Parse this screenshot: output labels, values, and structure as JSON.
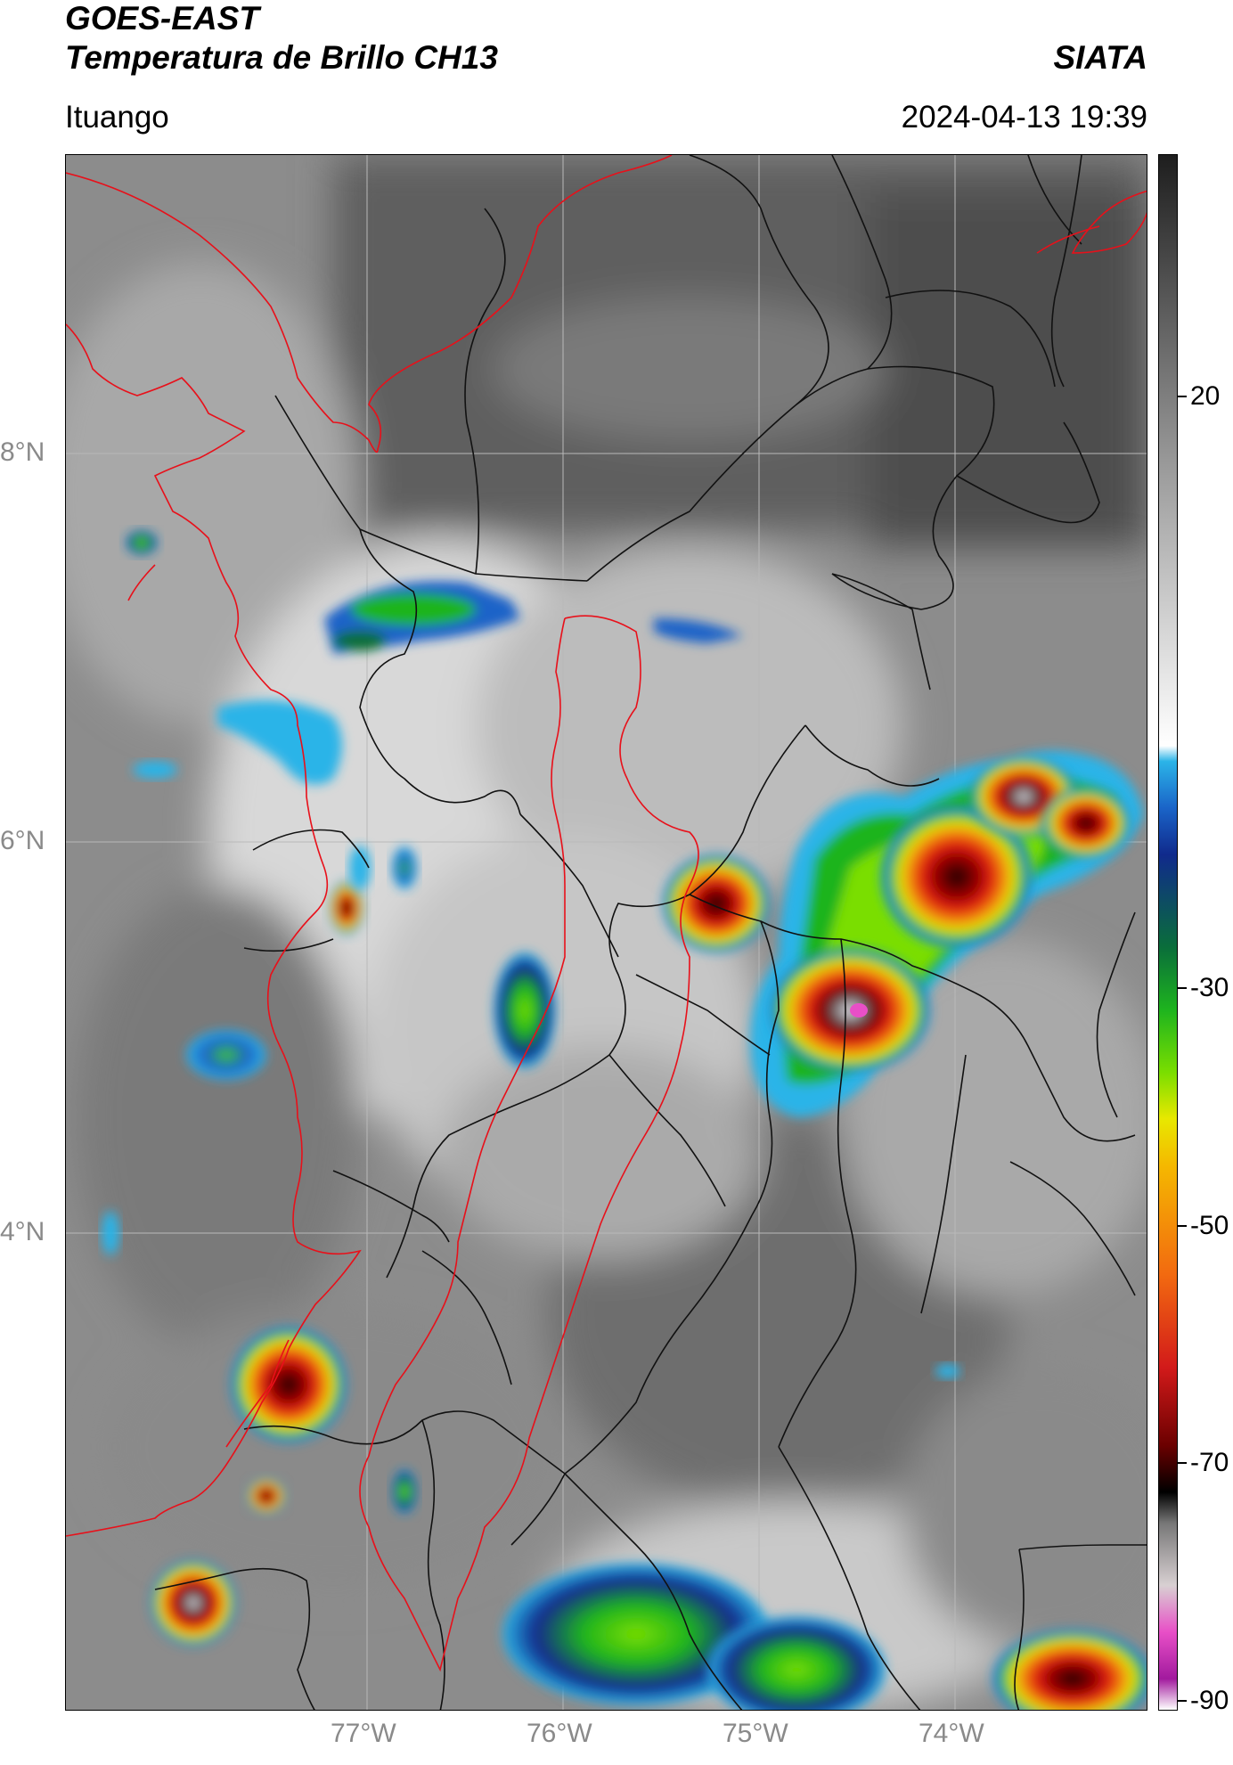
{
  "header": {
    "line1": "GOES-EAST",
    "line2": "Temperatura de Brillo CH13",
    "org": "SIATA",
    "location": "Ituango",
    "datetime": "2024-04-13 19:39"
  },
  "map": {
    "lat_labels": [
      "8°N",
      "6°N",
      "4°N"
    ],
    "lon_labels": [
      "77°W",
      "76°W",
      "75°W",
      "74°W"
    ],
    "border_colors": {
      "country": "#e8101a",
      "department": "#111111",
      "grid": "#b9b9b9"
    }
  },
  "colorbar": {
    "tick_labels": [
      "20",
      "-30",
      "-50",
      "-70",
      "-90"
    ],
    "colors": [
      "#ffffff",
      "#a21a9e",
      "#e84fc7",
      "#d8d0d2",
      "#777777",
      "#000000",
      "#6b0000",
      "#d21a1a",
      "#f26a10",
      "#f5b800",
      "#e8e800",
      "#7ade00",
      "#1eb41e",
      "#0a6e3a",
      "#102a8c",
      "#1a64c8",
      "#2bb4e8",
      "#ffffff",
      "#9a9a9a",
      "#1e1e1e"
    ]
  }
}
